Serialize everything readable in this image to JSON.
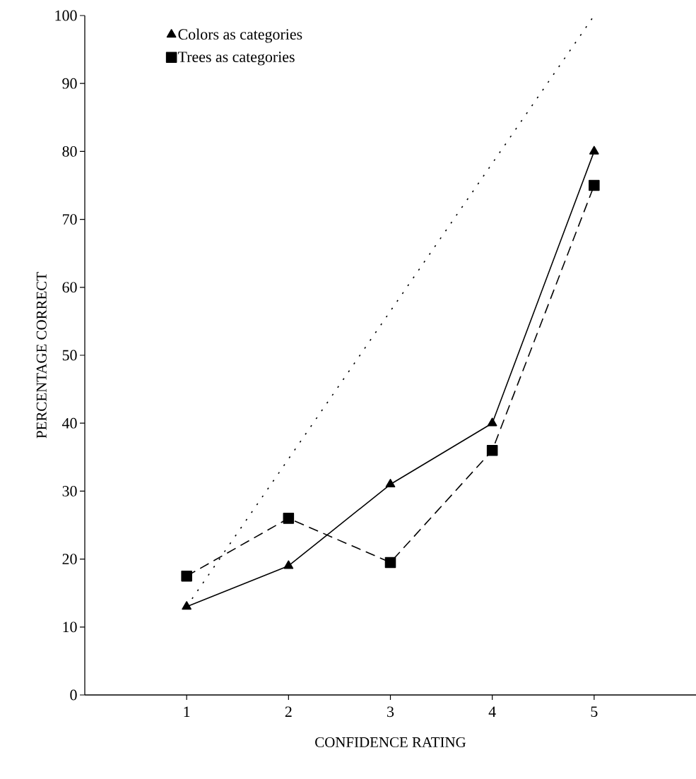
{
  "chart_data": {
    "type": "line",
    "xlabel": "CONFIDENCE RATING",
    "ylabel": "PERCENTAGE CORRECT",
    "xlim": [
      0,
      6
    ],
    "xticks": [
      1,
      2,
      3,
      4,
      5
    ],
    "ylim": [
      0,
      100
    ],
    "yticks": [
      0,
      10,
      20,
      30,
      40,
      50,
      60,
      70,
      80,
      90,
      100
    ],
    "x": [
      1,
      2,
      3,
      4,
      5
    ],
    "legend": "top left",
    "grid": false,
    "series": [
      {
        "name": "Colors as categories",
        "color": "#000000",
        "values": [
          13,
          19,
          31,
          40,
          80
        ],
        "marker": "triangle",
        "line_style": "solid"
      },
      {
        "name": "Trees as categories",
        "color": "#000000",
        "values": [
          17.5,
          26,
          19.5,
          36,
          75
        ],
        "marker": "square",
        "line_style": "dashed"
      },
      {
        "color": "#000000",
        "x": [
          1,
          5
        ],
        "values": [
          13,
          100
        ],
        "marker": "none",
        "line_style": "dotted"
      }
    ]
  }
}
